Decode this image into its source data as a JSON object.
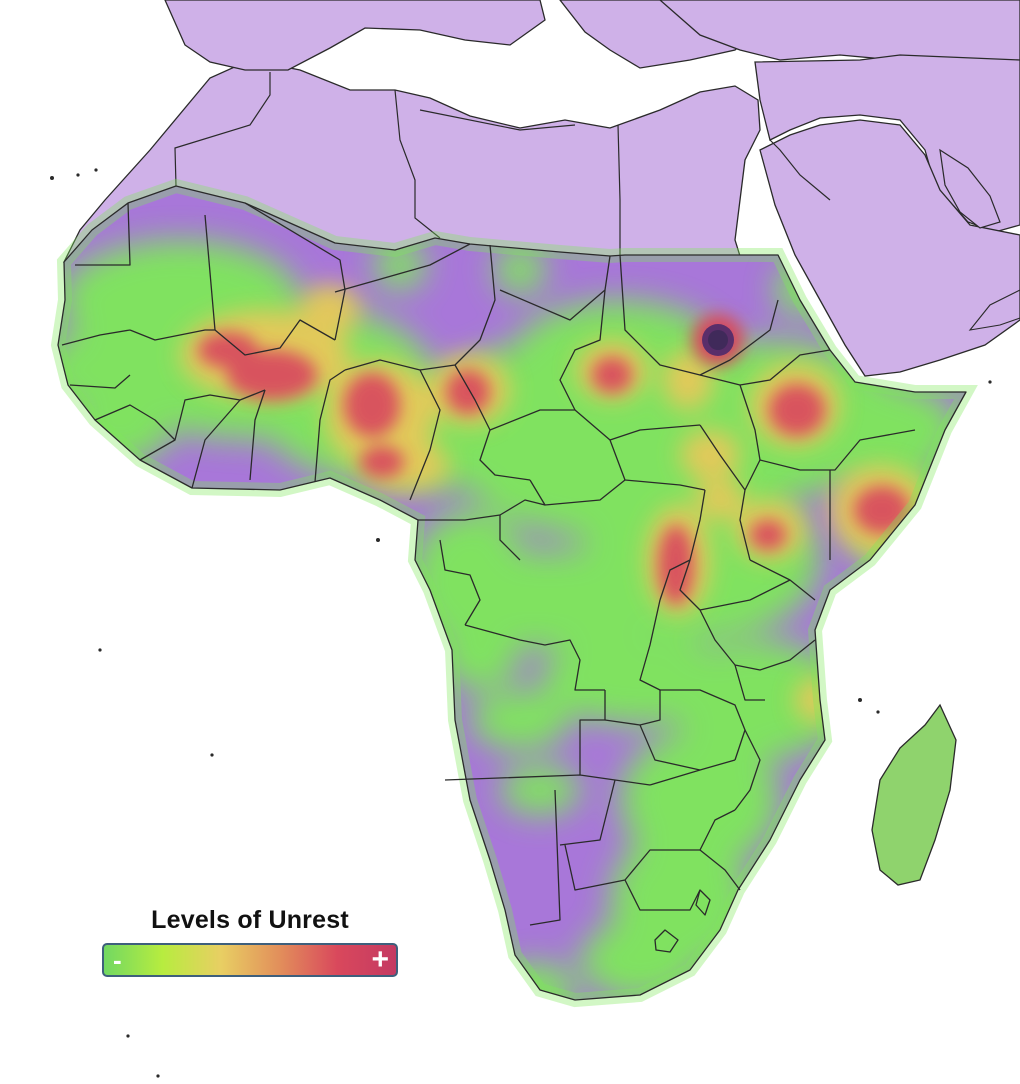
{
  "map": {
    "region": "Africa",
    "layer": "unrest-heatmap",
    "colors": {
      "ocean": "#ffffff",
      "outside_region": "#cfb1e8",
      "region_base": "#a877d9",
      "borders": "#2a2a2a",
      "heat_low": "#7ee85a",
      "heat_mid": "#e7c85a",
      "heat_high": "#d8465f",
      "heat_peak": "#402a5a"
    }
  },
  "legend": {
    "title": "Levels of Unrest",
    "min_label": "-",
    "max_label": "+",
    "gradient": [
      "#72d862",
      "#b7ec3f",
      "#e8cf63",
      "#e28f5b",
      "#d9485c",
      "#c43a62"
    ]
  }
}
